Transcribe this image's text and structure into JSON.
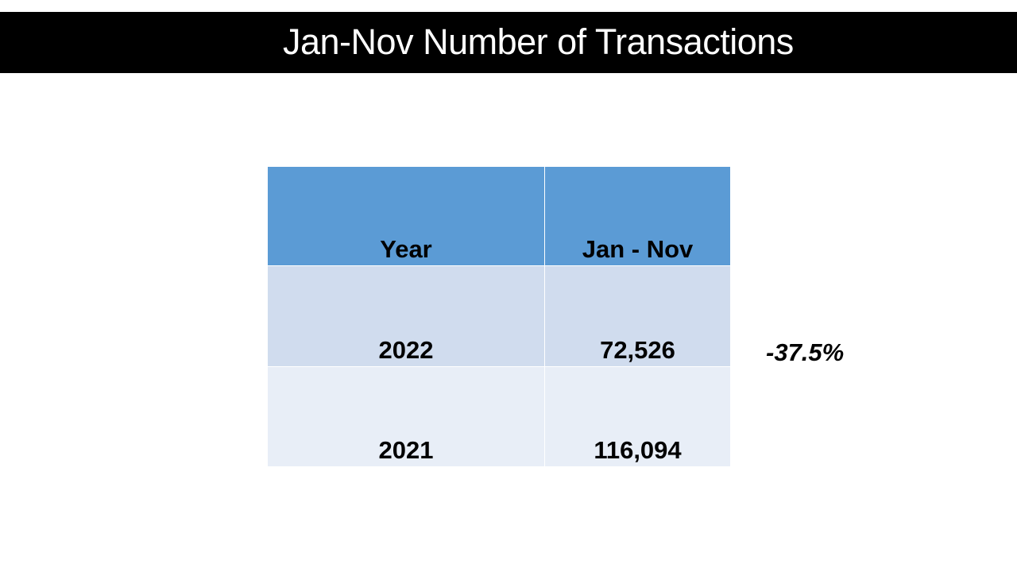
{
  "title": "Jan-Nov Number of Transactions",
  "table": {
    "headers": [
      "Year",
      "Jan - Nov"
    ],
    "rows": [
      [
        "2022",
        "72,526"
      ],
      [
        "2021",
        "116,094"
      ]
    ]
  },
  "change_label": "-37.5%",
  "colors": {
    "title_bar": "#000000",
    "header_fill": "#5b9bd5",
    "row_odd_fill": "#d0dcee",
    "row_even_fill": "#e8eef7"
  }
}
